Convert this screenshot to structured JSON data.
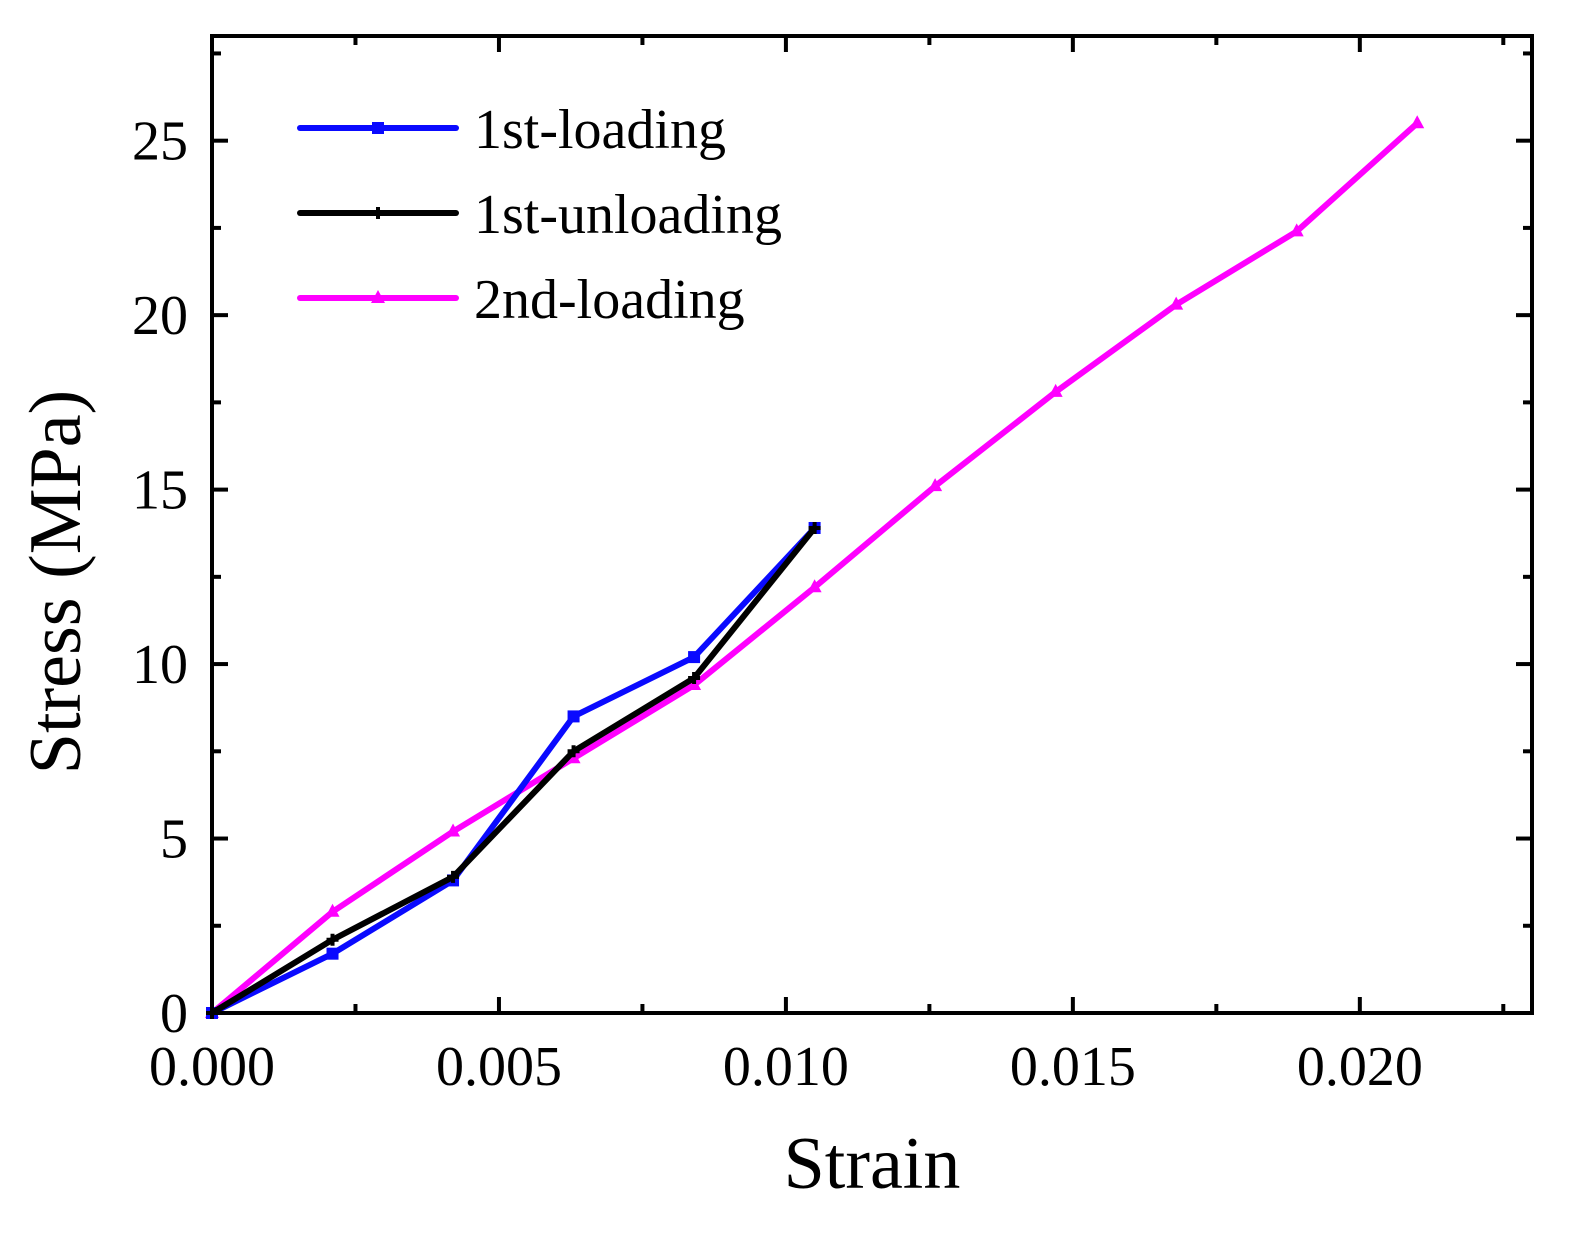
{
  "chart_data": {
    "type": "line",
    "title": "",
    "xlabel": "Strain",
    "ylabel": "Stress (MPa)",
    "xlim": [
      0.0,
      0.023
    ],
    "ylim": [
      0,
      28
    ],
    "grid": false,
    "legend_position": "top-left",
    "x_ticks": [
      {
        "value": 0.0,
        "label": "0.000"
      },
      {
        "value": 0.005,
        "label": "0.005"
      },
      {
        "value": 0.01,
        "label": "0.010"
      },
      {
        "value": 0.015,
        "label": "0.015"
      },
      {
        "value": 0.02,
        "label": "0.020"
      }
    ],
    "y_ticks": [
      {
        "value": 0,
        "label": "0"
      },
      {
        "value": 5,
        "label": "5"
      },
      {
        "value": 10,
        "label": "10"
      },
      {
        "value": 15,
        "label": "15"
      },
      {
        "value": 20,
        "label": "20"
      },
      {
        "value": 25,
        "label": "25"
      }
    ],
    "series": [
      {
        "name": "1st-loading",
        "color": "#0a0aff",
        "marker": "square",
        "x": [
          0.0,
          0.0021,
          0.0042,
          0.0063,
          0.0084,
          0.0105
        ],
        "y": [
          0.0,
          1.7,
          3.8,
          8.5,
          10.2,
          13.9
        ]
      },
      {
        "name": "1st-unloading",
        "color": "#000000",
        "marker": "cross",
        "x": [
          0.0105,
          0.0084,
          0.0063,
          0.0042,
          0.0021,
          0.0
        ],
        "y": [
          13.9,
          9.6,
          7.5,
          3.9,
          2.1,
          0.0
        ]
      },
      {
        "name": "2nd-loading",
        "color": "#ff00ff",
        "marker": "triangle",
        "x": [
          0.0,
          0.0021,
          0.0042,
          0.0063,
          0.0084,
          0.0105,
          0.0126,
          0.0147,
          0.0168,
          0.0189,
          0.021
        ],
        "y": [
          0.0,
          2.9,
          5.2,
          7.3,
          9.4,
          12.2,
          15.1,
          17.8,
          20.3,
          22.4,
          25.5
        ]
      }
    ]
  }
}
